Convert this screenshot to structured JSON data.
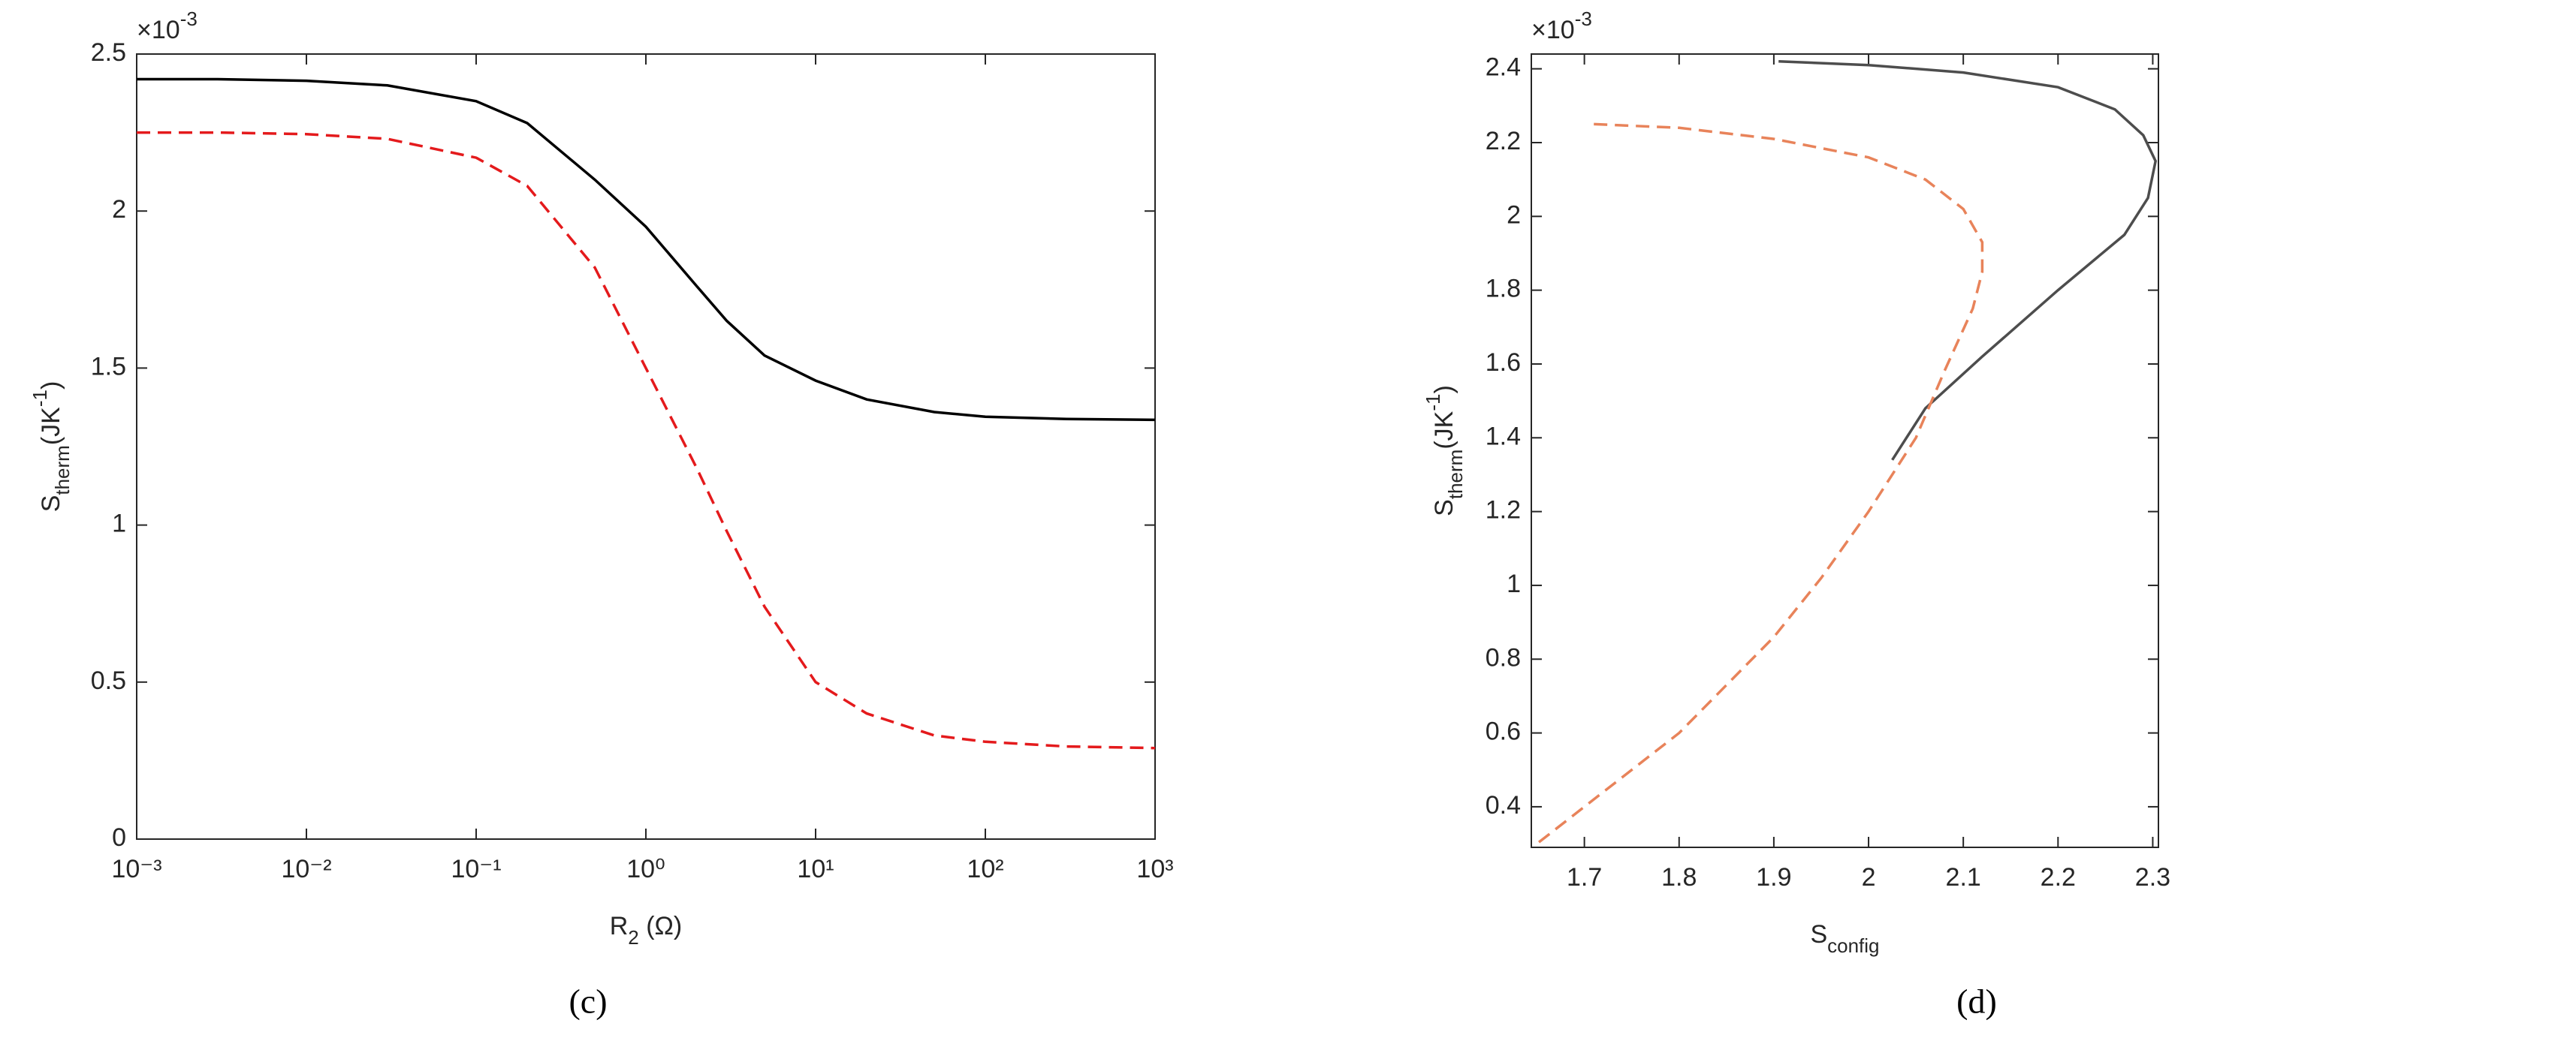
{
  "chart_data": [
    {
      "type": "line",
      "caption": "(c)",
      "xscale": "log",
      "xlabel": [
        {
          "text": "R"
        },
        {
          "text": "2",
          "shift": "sub"
        },
        {
          "text": " (Ω)"
        }
      ],
      "ylabel": [
        {
          "text": "S"
        },
        {
          "text": "therm",
          "shift": "sub"
        },
        {
          "text": "(JK"
        },
        {
          "text": "-1",
          "shift": "super"
        },
        {
          "text": ")"
        }
      ],
      "multiplier": [
        {
          "text": "×10"
        },
        {
          "text": "-3",
          "shift": "super"
        }
      ],
      "xlim": [
        0.001,
        1000
      ],
      "xticks": [
        {
          "value": 0.001,
          "label": "10⁻³"
        },
        {
          "value": 0.01,
          "label": "10⁻²"
        },
        {
          "value": 0.1,
          "label": "10⁻¹"
        },
        {
          "value": 1,
          "label": "10⁰"
        },
        {
          "value": 10,
          "label": "10¹"
        },
        {
          "value": 100,
          "label": "10²"
        },
        {
          "value": 1000,
          "label": "10³"
        }
      ],
      "ylim": [
        0,
        2.5
      ],
      "yticks": [
        0,
        0.5,
        1,
        1.5,
        2,
        2.5
      ],
      "x": [
        0.001,
        0.003,
        0.01,
        0.03,
        0.1,
        0.2,
        0.5,
        1,
        2,
        3,
        5,
        10,
        20,
        50,
        100,
        300,
        1000
      ],
      "series": [
        {
          "color": "#000000",
          "dash": false,
          "values": [
            2.42,
            2.42,
            2.415,
            2.4,
            2.35,
            2.28,
            2.1,
            1.95,
            1.76,
            1.65,
            1.54,
            1.46,
            1.4,
            1.36,
            1.345,
            1.338,
            1.335
          ]
        },
        {
          "color": "#e41a1c",
          "dash": true,
          "values": [
            2.25,
            2.25,
            2.245,
            2.23,
            2.17,
            2.08,
            1.82,
            1.5,
            1.18,
            0.98,
            0.74,
            0.5,
            0.4,
            0.33,
            0.31,
            0.295,
            0.29
          ]
        }
      ]
    },
    {
      "type": "line",
      "caption": "(d)",
      "xlabel": [
        {
          "text": "S"
        },
        {
          "text": "config",
          "shift": "sub"
        }
      ],
      "ylabel": [
        {
          "text": "S"
        },
        {
          "text": "therm",
          "shift": "sub"
        },
        {
          "text": "(JK"
        },
        {
          "text": "-1",
          "shift": "super"
        },
        {
          "text": ")"
        }
      ],
      "multiplier": [
        {
          "text": "×10"
        },
        {
          "text": "-3",
          "shift": "super"
        }
      ],
      "xlim": [
        1.644,
        2.306
      ],
      "xticks": [
        1.7,
        1.8,
        1.9,
        2,
        2.1,
        2.2,
        2.3
      ],
      "ylim": [
        0.29,
        2.44
      ],
      "yticks": [
        0.4,
        0.6,
        0.8,
        1,
        1.2,
        1.4,
        1.6,
        1.8,
        2,
        2.2,
        2.4
      ],
      "series": [
        {
          "color": "#4d4d4d",
          "dash": false,
          "x": [
            1.905,
            2.0,
            2.1,
            2.2,
            2.26,
            2.29,
            2.303,
            2.295,
            2.27,
            2.2,
            2.12,
            2.06,
            2.025
          ],
          "values": [
            2.42,
            2.41,
            2.39,
            2.35,
            2.29,
            2.22,
            2.15,
            2.05,
            1.95,
            1.8,
            1.62,
            1.48,
            1.34
          ]
        },
        {
          "color": "#e8835a",
          "dash": true,
          "x": [
            1.71,
            1.8,
            1.9,
            2.0,
            2.06,
            2.1,
            2.12,
            2.12,
            2.11,
            2.08,
            2.05,
            2.0,
            1.95,
            1.9,
            1.8,
            1.7,
            1.65
          ],
          "values": [
            2.25,
            2.24,
            2.21,
            2.16,
            2.1,
            2.02,
            1.93,
            1.85,
            1.75,
            1.58,
            1.4,
            1.2,
            1.02,
            0.86,
            0.6,
            0.4,
            0.3
          ]
        }
      ]
    }
  ]
}
